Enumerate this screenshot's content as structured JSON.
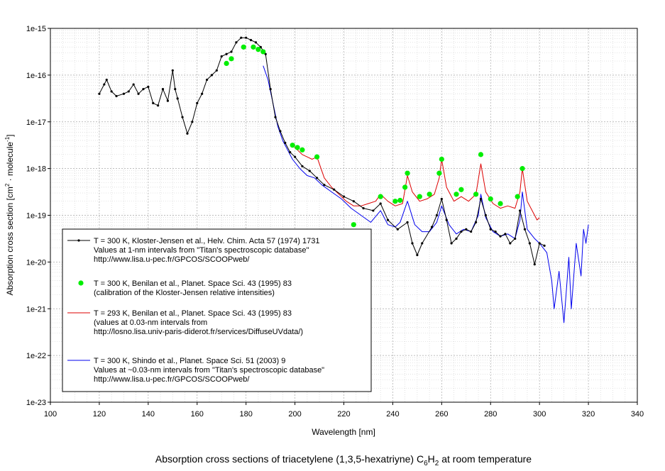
{
  "chart_data": {
    "type": "line",
    "title": "Absorption cross sections of triacetylene (1,3,5-hexatriyne) C6H2 at room temperature",
    "title_parts": {
      "prefix": "Absorption cross sections of triacetylene (1,3,5-hexatriyne) C",
      "sub": "6",
      "mid": "H",
      "sub2": "2",
      "suffix": " at room temperature"
    },
    "xlabel": "Wavelength [nm]",
    "ylabel": "Absorption cross section [cm2 · molecule-1]",
    "ylabel_parts": {
      "a": "Absorption cross section [cm",
      "sup1": "2",
      "b": " · molecule",
      "sup2": "-1",
      "c": "]"
    },
    "xlim": [
      100,
      340
    ],
    "ylim_log10": [
      -23,
      -15
    ],
    "y_scale": "log",
    "grid": true,
    "legend_placement": "lower-left",
    "x_ticks": [
      "100",
      "120",
      "140",
      "160",
      "180",
      "200",
      "220",
      "240",
      "260",
      "280",
      "300",
      "320",
      "340"
    ],
    "y_ticks": [
      "1e-15",
      "1e-16",
      "1e-17",
      "1e-18",
      "1e-19",
      "1e-20",
      "1e-21",
      "1e-22",
      "1e-23"
    ],
    "series": [
      {
        "name": "Kloster-Jensen",
        "color": "#000000",
        "marker": "dot",
        "legend": [
          "T = 300 K, Kloster-Jensen et al., Helv. Chim. Acta 57 (1974) 1731",
          "Values at 1-nm intervals from \"Titan's spectroscopic database\"",
          "http://www.lisa.u-pec.fr/GPCOS/SCOOPweb/"
        ],
        "x": [
          120,
          122,
          123,
          125,
          127,
          130,
          132,
          134,
          136,
          138,
          140,
          142,
          144,
          146,
          148,
          150,
          151,
          152,
          154,
          156,
          158,
          160,
          162,
          164,
          166,
          168,
          170,
          172,
          174,
          176,
          178,
          180,
          182,
          184,
          186,
          188,
          190,
          192,
          194,
          196,
          198,
          200,
          203,
          206,
          209,
          212,
          216,
          220,
          224,
          228,
          232,
          235,
          238,
          242,
          246,
          248,
          250,
          252,
          256,
          258,
          260,
          262,
          264,
          266,
          268,
          270,
          272,
          274,
          276,
          278,
          280,
          282,
          284,
          286,
          288,
          290,
          292,
          294,
          296,
          298,
          300,
          302
        ],
        "log10y": [
          -16.4,
          -16.2,
          -16.1,
          -16.35,
          -16.45,
          -16.4,
          -16.35,
          -16.2,
          -16.4,
          -16.3,
          -16.25,
          -16.6,
          -16.65,
          -16.3,
          -16.55,
          -15.9,
          -16.3,
          -16.5,
          -16.9,
          -17.25,
          -17.0,
          -16.6,
          -16.4,
          -16.1,
          -16.0,
          -15.9,
          -15.6,
          -15.55,
          -15.5,
          -15.3,
          -15.2,
          -15.2,
          -15.25,
          -15.3,
          -15.4,
          -15.55,
          -16.3,
          -16.9,
          -17.2,
          -17.45,
          -17.65,
          -17.75,
          -17.95,
          -18.05,
          -18.2,
          -18.35,
          -18.45,
          -18.6,
          -18.7,
          -18.85,
          -18.9,
          -18.75,
          -19.1,
          -19.3,
          -19.15,
          -19.6,
          -19.85,
          -19.6,
          -19.25,
          -19.0,
          -18.65,
          -19.1,
          -19.6,
          -19.5,
          -19.35,
          -19.3,
          -19.35,
          -19.15,
          -18.65,
          -19.0,
          -19.3,
          -19.35,
          -19.45,
          -19.4,
          -19.6,
          -19.5,
          -18.9,
          -19.3,
          -19.6,
          -20.05,
          -19.6,
          -19.65
        ]
      },
      {
        "name": "Benilan calibration",
        "color": "#00ee00",
        "marker": "big-dot",
        "legend": [
          "T = 300 K, Benilan et al., Planet. Space Sci. 43 (1995) 83",
          "(calibration of the Kloster-Jensen relative intensities)"
        ],
        "x": [
          172,
          174,
          179,
          183,
          185,
          187,
          199,
          201,
          203,
          209,
          224,
          235,
          241,
          243,
          245,
          246,
          251,
          255,
          259,
          260,
          266,
          268,
          274,
          276,
          280,
          284,
          291,
          293
        ],
        "log10y": [
          -15.75,
          -15.65,
          -15.4,
          -15.4,
          -15.45,
          -15.5,
          -17.5,
          -17.55,
          -17.6,
          -17.75,
          -19.2,
          -18.6,
          -18.7,
          -18.68,
          -18.4,
          -18.1,
          -18.6,
          -18.55,
          -18.1,
          -17.8,
          -18.55,
          -18.45,
          -18.55,
          -17.7,
          -18.65,
          -18.75,
          -18.6,
          -18.0
        ]
      },
      {
        "name": "Benilan 293 K",
        "color": "#dd0000",
        "marker": "none",
        "legend": [
          "T = 293 K, Benilan et al., Planet. Space Sci. 43 (1995) 83",
          "(values at 0.03-nm intervals from",
          "http://losno.lisa.univ-paris-diderot.fr/services/DiffuseUVdata/)"
        ],
        "x": [
          199,
          201,
          203,
          205,
          207,
          209,
          212,
          215,
          218,
          221,
          224,
          227,
          230,
          233,
          235,
          238,
          241,
          244,
          246,
          248,
          251,
          254,
          257,
          259,
          260,
          262,
          265,
          268,
          271,
          274,
          276,
          278,
          281,
          284,
          287,
          290,
          292,
          293,
          295,
          297,
          298,
          299,
          300
        ],
        "log10y": [
          -17.5,
          -17.6,
          -17.7,
          -17.75,
          -17.8,
          -17.75,
          -18.2,
          -18.4,
          -18.55,
          -18.7,
          -18.8,
          -18.8,
          -18.75,
          -18.7,
          -18.55,
          -18.7,
          -18.8,
          -18.75,
          -18.15,
          -18.5,
          -18.7,
          -18.65,
          -18.55,
          -18.2,
          -17.8,
          -18.4,
          -18.7,
          -18.6,
          -18.7,
          -18.55,
          -17.9,
          -18.5,
          -18.75,
          -18.85,
          -18.8,
          -18.85,
          -18.5,
          -18.0,
          -18.7,
          -18.9,
          -19.0,
          -19.1,
          -19.05
        ]
      },
      {
        "name": "Shindo",
        "color": "#0000ee",
        "marker": "none",
        "legend": [
          "T = 300 K, Shindo et al., Planet. Space Sci. 51 (2003) 9",
          "Values at ~0.03-nm intervals from \"Titan's spectroscopic database\"",
          "http://www.lisa.u-pec.fr/GPCOS/SCOOPweb/"
        ],
        "x": [
          187,
          189,
          191,
          193,
          195,
          197,
          199,
          202,
          205,
          208,
          211,
          215,
          219,
          223,
          227,
          231,
          235,
          238,
          241,
          243,
          246,
          249,
          252,
          255,
          258,
          260,
          263,
          266,
          269,
          272,
          275,
          276,
          278,
          281,
          284,
          287,
          290,
          292,
          293,
          295,
          298,
          300,
          303,
          305,
          306,
          308,
          310,
          312,
          313,
          315,
          317,
          318,
          319,
          320
        ],
        "log10y": [
          -15.8,
          -16.1,
          -16.6,
          -17.1,
          -17.4,
          -17.6,
          -17.8,
          -18.0,
          -18.15,
          -18.2,
          -18.35,
          -18.5,
          -18.65,
          -18.85,
          -19.0,
          -19.15,
          -18.9,
          -19.2,
          -19.25,
          -19.15,
          -18.7,
          -19.2,
          -19.35,
          -19.35,
          -19.15,
          -18.8,
          -19.2,
          -19.4,
          -19.3,
          -19.35,
          -19.0,
          -18.55,
          -19.05,
          -19.35,
          -19.45,
          -19.4,
          -19.5,
          -19.1,
          -18.5,
          -19.3,
          -19.5,
          -19.6,
          -19.8,
          -20.4,
          -21.0,
          -20.2,
          -21.3,
          -19.9,
          -21.0,
          -19.6,
          -20.3,
          -19.3,
          -19.6,
          -19.2
        ]
      }
    ]
  }
}
